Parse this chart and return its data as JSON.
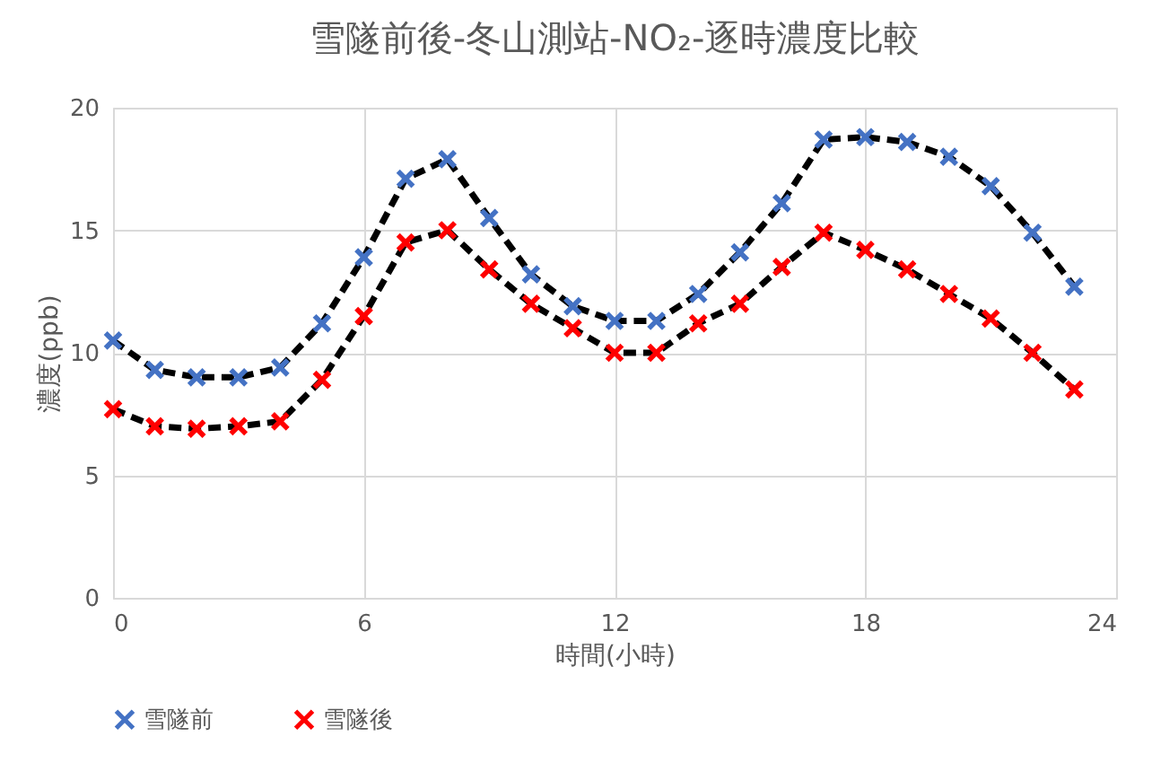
{
  "chart_data": {
    "type": "line",
    "title": "雪隧前後-冬山測站-NO₂-逐時濃度比較",
    "xlabel": "時間(小時)",
    "ylabel": "濃度(ppb)",
    "x": [
      0,
      1,
      2,
      3,
      4,
      5,
      6,
      7,
      8,
      9,
      10,
      11,
      12,
      13,
      14,
      15,
      16,
      17,
      18,
      19,
      20,
      21,
      22,
      23
    ],
    "series": [
      {
        "name": "雪隧前",
        "color": "#4472c4",
        "values": [
          10.5,
          9.3,
          9.0,
          9.0,
          9.4,
          11.2,
          13.9,
          17.1,
          17.9,
          15.5,
          13.2,
          11.9,
          11.3,
          11.3,
          12.4,
          14.1,
          16.1,
          18.7,
          18.8,
          18.6,
          18.0,
          16.8,
          14.9,
          12.7
        ]
      },
      {
        "name": "雪隧後",
        "color": "#ff0000",
        "values": [
          7.7,
          7.0,
          6.9,
          7.0,
          7.2,
          8.9,
          11.5,
          14.5,
          15.0,
          13.4,
          12.0,
          11.0,
          10.0,
          10.0,
          11.2,
          12.0,
          13.5,
          14.9,
          14.2,
          13.4,
          12.4,
          11.4,
          10.0,
          8.5
        ]
      }
    ],
    "xlim": [
      0,
      24
    ],
    "xticks": [
      0,
      6,
      12,
      18,
      24
    ],
    "ylim": [
      0,
      20
    ],
    "yticks": [
      0,
      5,
      10,
      15,
      20
    ],
    "grid": true,
    "legend": "bottom",
    "marker": "cross",
    "line_style": "dashed"
  }
}
